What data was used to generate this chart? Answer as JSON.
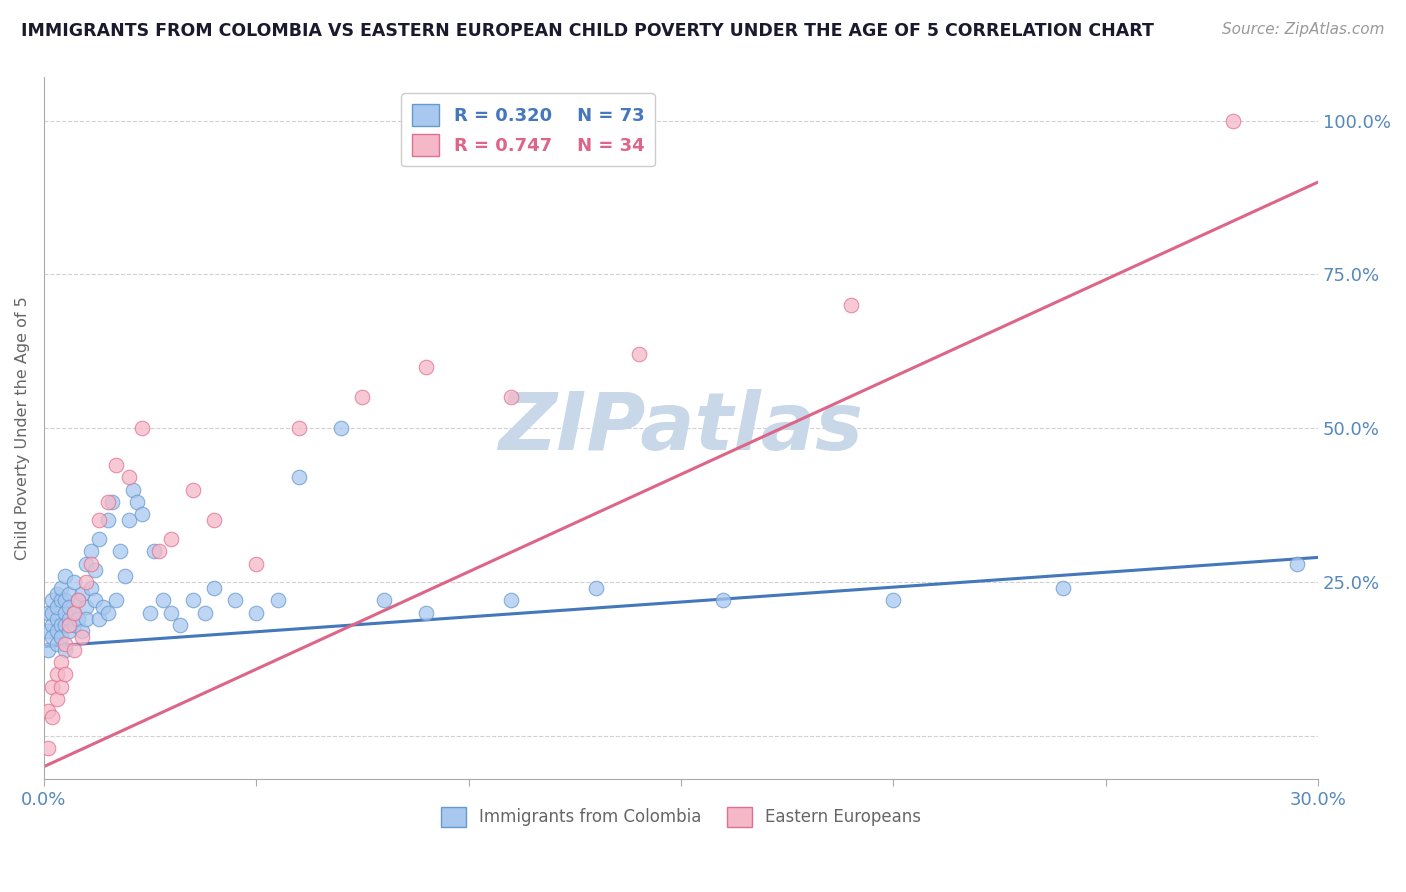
{
  "title": "IMMIGRANTS FROM COLOMBIA VS EASTERN EUROPEAN CHILD POVERTY UNDER THE AGE OF 5 CORRELATION CHART",
  "source": "Source: ZipAtlas.com",
  "ylabel": "Child Poverty Under the Age of 5",
  "xlim": [
    0.0,
    0.3
  ],
  "ylim": [
    -0.07,
    1.07
  ],
  "xtick_positions": [
    0.0,
    0.05,
    0.1,
    0.15,
    0.2,
    0.25,
    0.3
  ],
  "xticklabels": [
    "0.0%",
    "",
    "",
    "",
    "",
    "",
    "30.0%"
  ],
  "ytick_positions": [
    0.0,
    0.25,
    0.5,
    0.75,
    1.0
  ],
  "ytick_labels": [
    "",
    "25.0%",
    "50.0%",
    "75.0%",
    "100.0%"
  ],
  "colombia_color": "#A8C8F0",
  "colombia_edge": "#6699CC",
  "eastern_color": "#F5B8C8",
  "eastern_edge": "#E07090",
  "colombia_line_color": "#4477BB",
  "eastern_line_color": "#DD6688",
  "colombia_R": 0.32,
  "colombia_N": 73,
  "eastern_R": 0.747,
  "eastern_N": 34,
  "watermark": "ZIPatlas",
  "watermark_color": "#C8D8E8",
  "colombia_scatter_x": [
    0.001,
    0.001,
    0.001,
    0.002,
    0.002,
    0.002,
    0.002,
    0.003,
    0.003,
    0.003,
    0.003,
    0.003,
    0.004,
    0.004,
    0.004,
    0.004,
    0.005,
    0.005,
    0.005,
    0.005,
    0.005,
    0.006,
    0.006,
    0.006,
    0.006,
    0.007,
    0.007,
    0.007,
    0.008,
    0.008,
    0.009,
    0.009,
    0.01,
    0.01,
    0.01,
    0.011,
    0.011,
    0.012,
    0.012,
    0.013,
    0.013,
    0.014,
    0.015,
    0.015,
    0.016,
    0.017,
    0.018,
    0.019,
    0.02,
    0.021,
    0.022,
    0.023,
    0.025,
    0.026,
    0.028,
    0.03,
    0.032,
    0.035,
    0.038,
    0.04,
    0.045,
    0.05,
    0.055,
    0.06,
    0.07,
    0.08,
    0.09,
    0.11,
    0.13,
    0.16,
    0.2,
    0.24,
    0.295
  ],
  "colombia_scatter_y": [
    0.17,
    0.2,
    0.14,
    0.18,
    0.22,
    0.16,
    0.2,
    0.19,
    0.23,
    0.15,
    0.21,
    0.17,
    0.22,
    0.18,
    0.24,
    0.16,
    0.2,
    0.18,
    0.14,
    0.22,
    0.26,
    0.19,
    0.23,
    0.17,
    0.21,
    0.25,
    0.2,
    0.18,
    0.22,
    0.19,
    0.23,
    0.17,
    0.28,
    0.21,
    0.19,
    0.3,
    0.24,
    0.27,
    0.22,
    0.32,
    0.19,
    0.21,
    0.35,
    0.2,
    0.38,
    0.22,
    0.3,
    0.26,
    0.35,
    0.4,
    0.38,
    0.36,
    0.2,
    0.3,
    0.22,
    0.2,
    0.18,
    0.22,
    0.2,
    0.24,
    0.22,
    0.2,
    0.22,
    0.42,
    0.5,
    0.22,
    0.2,
    0.22,
    0.24,
    0.22,
    0.22,
    0.24,
    0.28
  ],
  "eastern_scatter_x": [
    0.001,
    0.001,
    0.002,
    0.002,
    0.003,
    0.003,
    0.004,
    0.004,
    0.005,
    0.005,
    0.006,
    0.007,
    0.007,
    0.008,
    0.009,
    0.01,
    0.011,
    0.013,
    0.015,
    0.017,
    0.02,
    0.023,
    0.027,
    0.03,
    0.035,
    0.04,
    0.05,
    0.06,
    0.075,
    0.09,
    0.11,
    0.14,
    0.19,
    0.28
  ],
  "eastern_scatter_y": [
    0.04,
    -0.02,
    0.08,
    0.03,
    0.1,
    0.06,
    0.12,
    0.08,
    0.15,
    0.1,
    0.18,
    0.2,
    0.14,
    0.22,
    0.16,
    0.25,
    0.28,
    0.35,
    0.38,
    0.44,
    0.42,
    0.5,
    0.3,
    0.32,
    0.4,
    0.35,
    0.28,
    0.5,
    0.55,
    0.6,
    0.55,
    0.62,
    0.7,
    1.0
  ]
}
